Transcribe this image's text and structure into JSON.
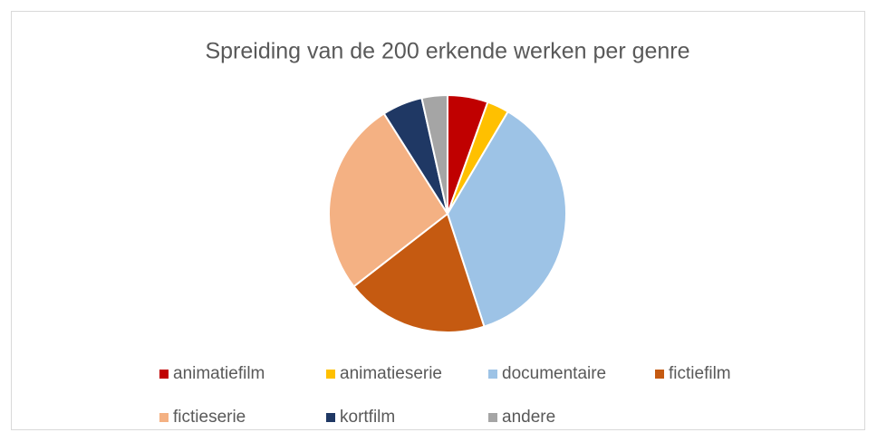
{
  "chart_data": {
    "type": "pie",
    "title": "Spreiding van de 200 erkende werken per genre",
    "categories": [
      "animatiefilm",
      "animatieserie",
      "documentaire",
      "fictiefilm",
      "fictieserie",
      "kortfilm",
      "andere"
    ],
    "values": [
      11,
      6,
      73,
      39,
      53,
      11,
      7
    ],
    "colors": [
      "#c00000",
      "#ffc000",
      "#9dc3e6",
      "#c55a11",
      "#f4b183",
      "#1f3864",
      "#a5a5a5"
    ],
    "legend": "bottom"
  }
}
